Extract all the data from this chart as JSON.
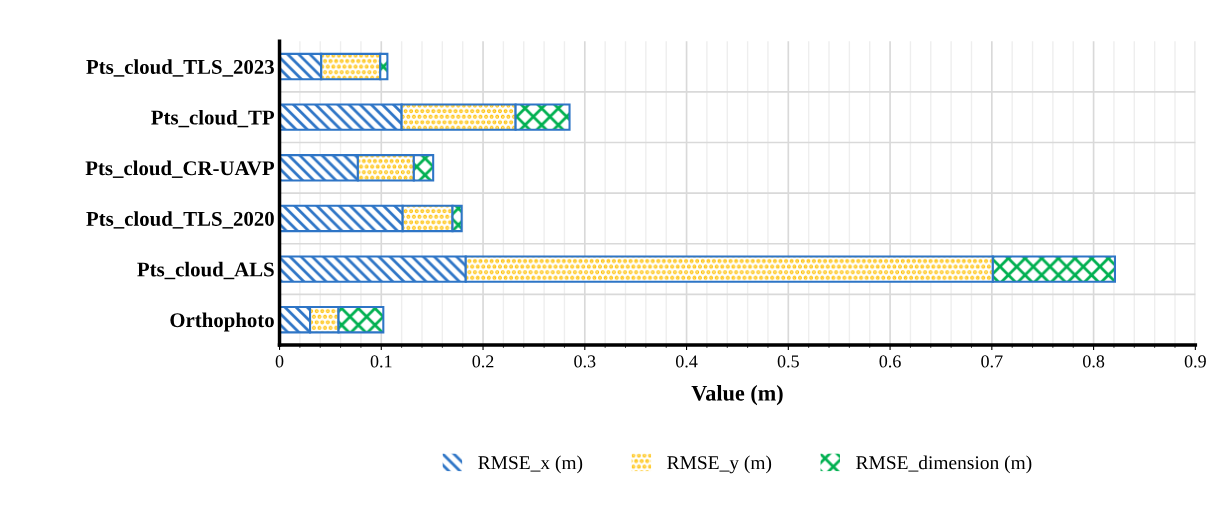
{
  "chart_data": {
    "type": "bar",
    "orientation": "horizontal",
    "stacked": true,
    "xlabel": "Value (m)",
    "categories": [
      "Pts_cloud_TLS_2023",
      "Pts_cloud_TP",
      "Pts_cloud_CR-UAVP",
      "Pts_cloud_TLS_2020",
      "Pts_cloud_ALS",
      "Orthophoto"
    ],
    "series": [
      {
        "name": "RMSE_x (m)",
        "color": "#2e75c6",
        "values": [
          0.041,
          0.12,
          0.077,
          0.121,
          0.183,
          0.03
        ]
      },
      {
        "name": "RMSE_y (m)",
        "color": "#ffc000",
        "values": [
          0.058,
          0.112,
          0.055,
          0.049,
          0.518,
          0.028
        ]
      },
      {
        "name": "RMSE_dimension (m)",
        "color": "#00b050",
        "values": [
          0.007,
          0.053,
          0.019,
          0.009,
          0.12,
          0.044
        ]
      }
    ],
    "xlim": [
      0,
      0.9
    ],
    "xticks": [
      0,
      0.1,
      0.2,
      0.3,
      0.4,
      0.5,
      0.6,
      0.7,
      0.8,
      0.9
    ],
    "grid": true,
    "legend": "bottom"
  }
}
